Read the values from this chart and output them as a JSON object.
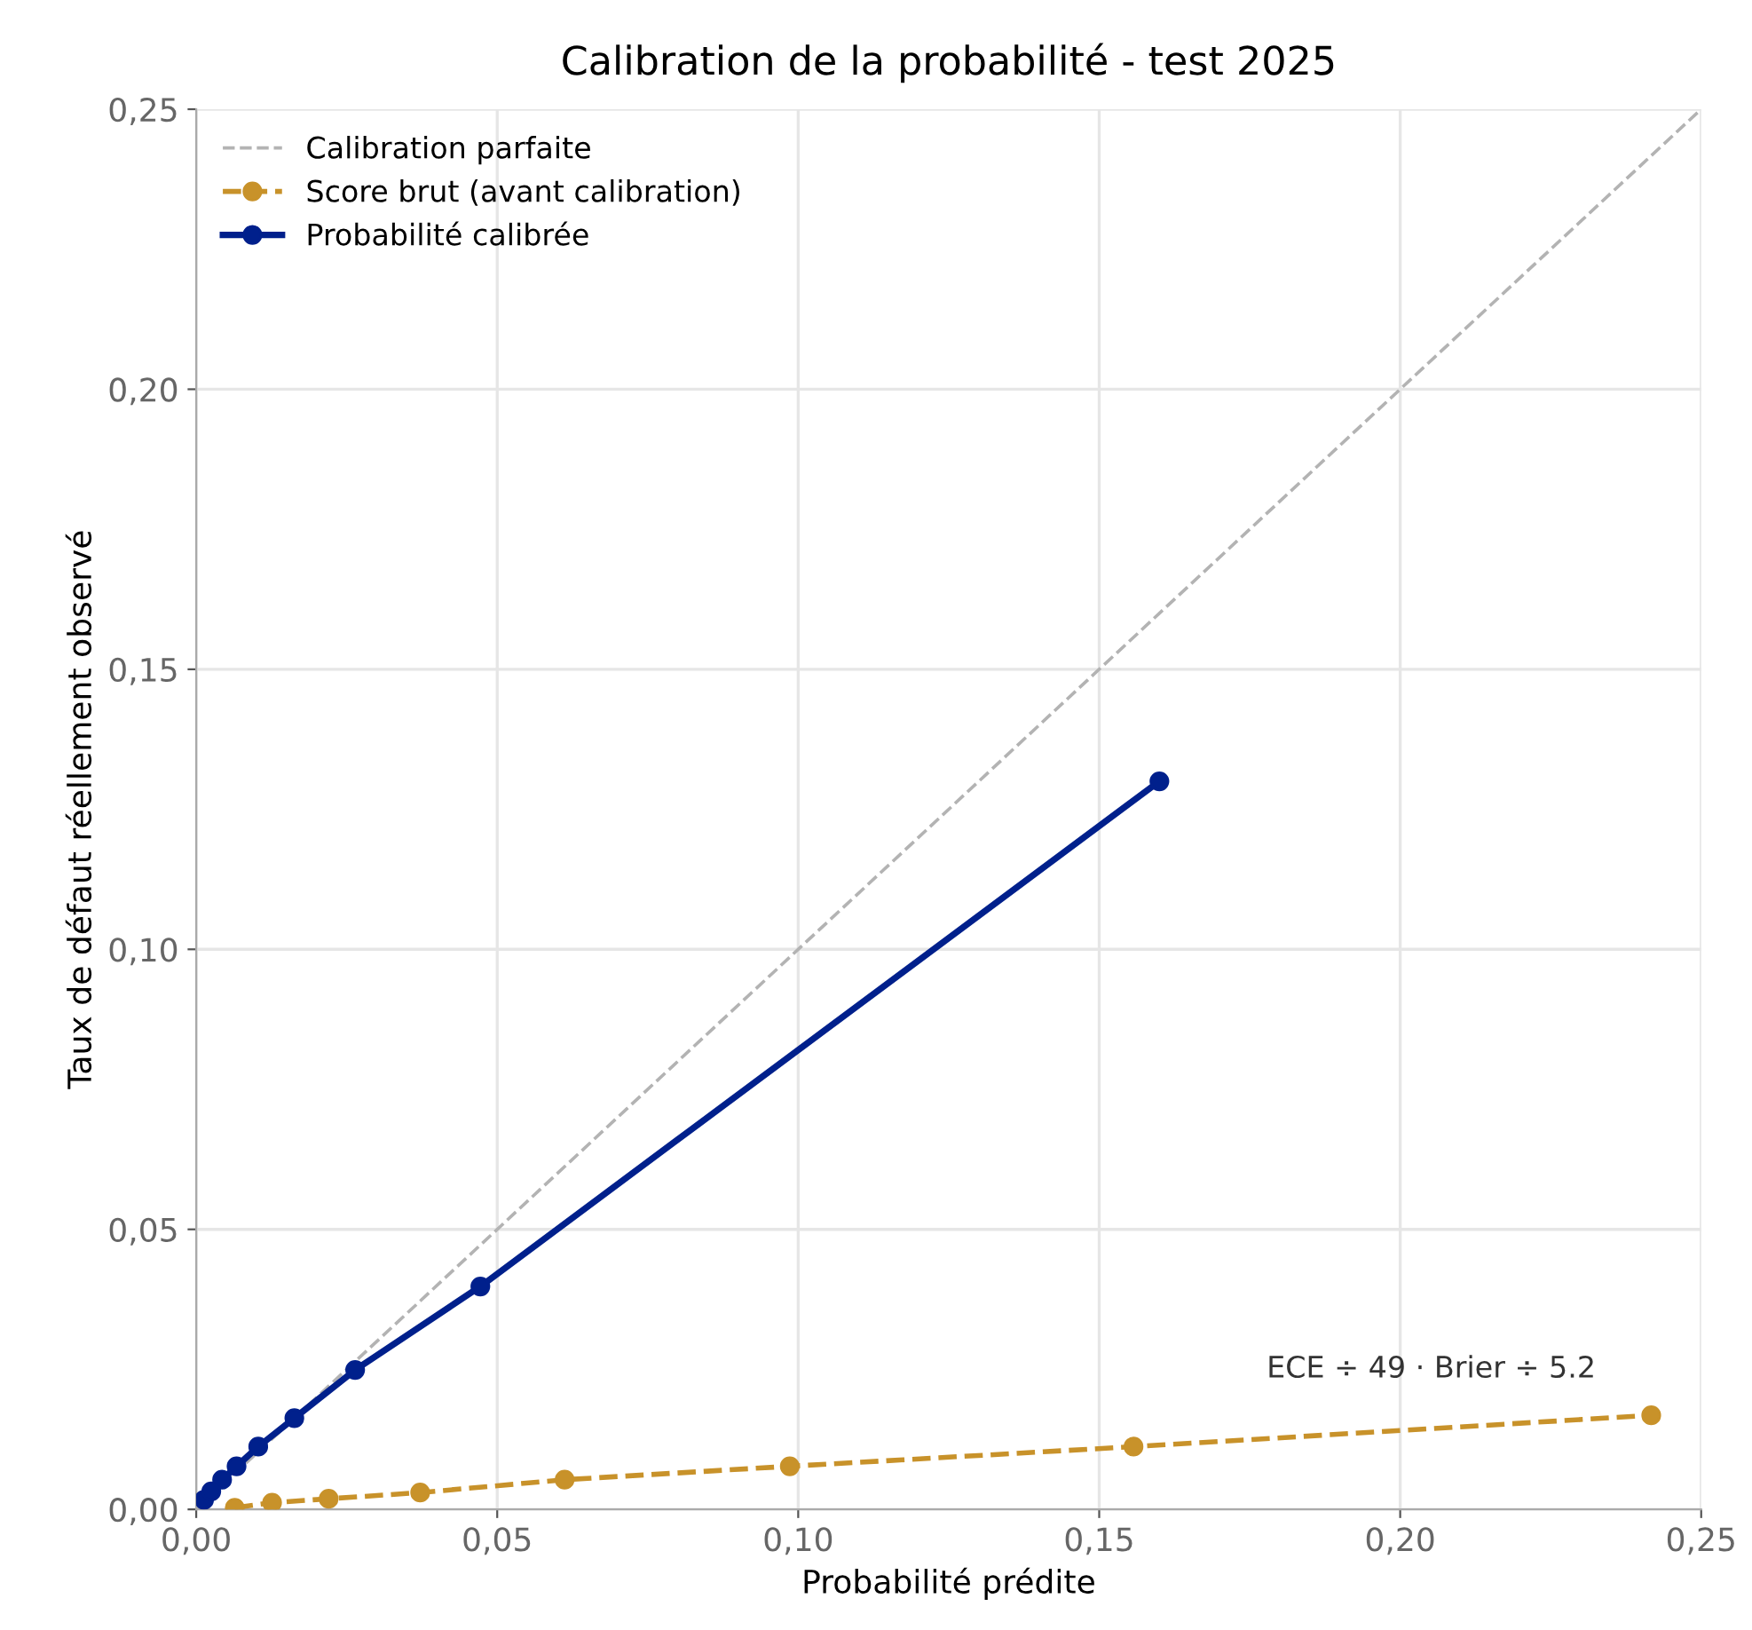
{
  "chart_data": {
    "type": "line",
    "title": "Calibration de la probabilité - test 2025",
    "xlabel": "Probabilité prédite",
    "ylabel": "Taux de défaut réellement observé",
    "series": [
      {
        "name": "Calibration parfaite",
        "color": "#b3b3b3",
        "line_style": "dashed",
        "marker": "none",
        "x": [
          0,
          0.25
        ],
        "values": [
          0,
          0.25
        ]
      },
      {
        "name": "Score brut (avant calibration)",
        "color": "#c8922a",
        "line_style": "dashed",
        "marker": "circle",
        "x": [
          0.0064,
          0.0126,
          0.022,
          0.0372,
          0.0612,
          0.0986,
          0.1557,
          0.2417
        ],
        "values": [
          0.0003,
          0.0012,
          0.0019,
          0.003,
          0.0053,
          0.0077,
          0.0112,
          0.0168
        ]
      },
      {
        "name": "Probabilité calibrée",
        "color": "#00208c",
        "line_style": "solid",
        "marker": "circle",
        "x": [
          0.0013,
          0.0025,
          0.0043,
          0.0067,
          0.0103,
          0.0163,
          0.0264,
          0.0472,
          0.16
        ],
        "values": [
          0.0017,
          0.0032,
          0.0053,
          0.0077,
          0.0112,
          0.0163,
          0.0249,
          0.0398,
          0.13
        ]
      }
    ],
    "annotations": [
      "ECE ÷ 49 · Brier ÷ 5.2"
    ],
    "xlim": [
      0,
      0.25
    ],
    "ylim": [
      0,
      0.25
    ],
    "xticks": [
      {
        "value": 0,
        "label": "0,00"
      },
      {
        "value": 0.05,
        "label": "0,05"
      },
      {
        "value": 0.1,
        "label": "0,10"
      },
      {
        "value": 0.15,
        "label": "0,15"
      },
      {
        "value": 0.2,
        "label": "0,20"
      },
      {
        "value": 0.25,
        "label": "0,25"
      }
    ],
    "yticks": [
      {
        "value": 0,
        "label": "0,00"
      },
      {
        "value": 0.05,
        "label": "0,05"
      },
      {
        "value": 0.1,
        "label": "0,10"
      },
      {
        "value": 0.15,
        "label": "0,15"
      },
      {
        "value": 0.2,
        "label": "0,20"
      },
      {
        "value": 0.25,
        "label": "0,25"
      }
    ],
    "grid": true,
    "legend": "top left"
  }
}
